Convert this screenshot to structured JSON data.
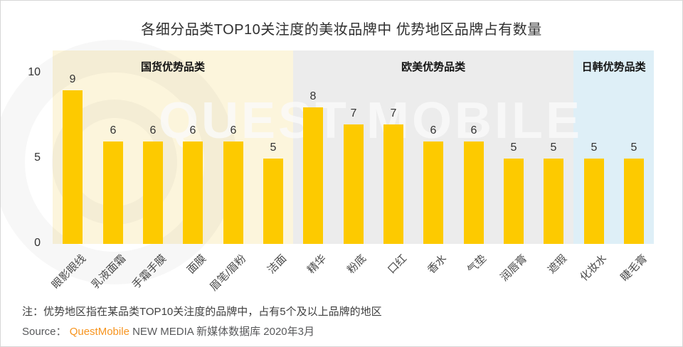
{
  "title": "各细分品类TOP10关注度的美妆品牌中 优势地区品牌占有数量",
  "watermark": {
    "text": "QUEST MOBILE"
  },
  "chart_data": {
    "type": "bar",
    "title": "各细分品类TOP10关注度的美妆品牌中 优势地区品牌占有数量",
    "categories": [
      "眼影眼线",
      "乳液面霜",
      "手霜手膜",
      "面膜",
      "眉笔/眉粉",
      "洁面",
      "精华",
      "粉底",
      "口红",
      "香水",
      "气垫",
      "润唇膏",
      "遮瑕",
      "化妆水",
      "睫毛膏"
    ],
    "values": [
      9,
      6,
      6,
      6,
      6,
      5,
      8,
      7,
      7,
      6,
      6,
      5,
      5,
      5,
      5
    ],
    "xlabel": "",
    "ylabel": "",
    "ylim": [
      0,
      10
    ],
    "yticks": [
      0,
      5,
      10
    ],
    "grid": false,
    "legend": "none",
    "bar_color": "#FDCA00",
    "regions": [
      {
        "label": "国货优势品类",
        "span": 6,
        "bg": "#FCF5DC"
      },
      {
        "label": "欧美优势品类",
        "span": 7,
        "bg": "#ECECEC"
      },
      {
        "label": "日韩优势品类",
        "span": 2,
        "bg": "#DEEFF7"
      }
    ]
  },
  "footer": {
    "note": "注：优势地区指在某品类TOP10关注度的品牌中，占有5个及以上品牌的地区",
    "source_prefix": "Source：  ",
    "source_brand": "QuestMobile",
    "source_rest": " NEW MEDIA 新媒体数据库 2020年3月",
    "brand_color": "#F7941E"
  }
}
